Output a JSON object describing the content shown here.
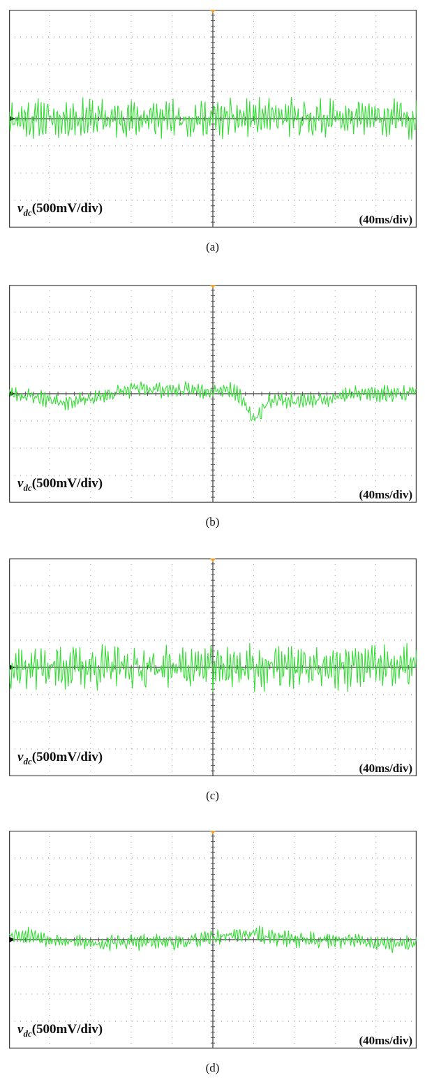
{
  "figure": {
    "panels": [
      {
        "caption": "(a)",
        "vlabel_sym": "v",
        "vlabel_sub": "dc",
        "vlabel_rest": "(500mV/div)",
        "tlabel": "(40ms/div)"
      },
      {
        "caption": "(b)",
        "vlabel_sym": "v",
        "vlabel_sub": "dc",
        "vlabel_rest": "(500mV/div)",
        "tlabel": "(40ms/div)"
      },
      {
        "caption": "(c)",
        "vlabel_sym": "v",
        "vlabel_sub": "dc",
        "vlabel_rest": "(500mV/div)",
        "tlabel": "(40ms/div)"
      },
      {
        "caption": "(d)",
        "vlabel_sym": "v",
        "vlabel_sub": "dc",
        "vlabel_rest": "(500mV/div)",
        "tlabel": "(40ms/div)"
      }
    ]
  },
  "chart_data": [
    {
      "type": "line",
      "series": [
        {
          "x_range": [
            -200,
            200
          ],
          "mean": 0,
          "amplitude_pp": 700,
          "low_freq_variation": 0,
          "seed": 11
        }
      ],
      "xlabel": "(40ms/div)",
      "ylabel": "vdc(500mV/div)",
      "xlim": [
        -200,
        200
      ],
      "ylim": [
        -2000,
        2000
      ],
      "xdivs": 10,
      "ydivs": 8,
      "grid": true,
      "color": "#33dd33"
    },
    {
      "type": "line",
      "series": [
        {
          "x_range": [
            -200,
            200
          ],
          "mean": 0,
          "amplitude_pp": 300,
          "low_freq_variation": 150,
          "dip": {
            "x": 40,
            "depth": 450
          },
          "seed": 23
        }
      ],
      "xlabel": "(40ms/div)",
      "ylabel": "vdc(500mV/div)",
      "xlim": [
        -200,
        200
      ],
      "ylim": [
        -2000,
        2000
      ],
      "xdivs": 10,
      "ydivs": 8,
      "grid": true,
      "color": "#33dd33"
    },
    {
      "type": "line",
      "series": [
        {
          "x_range": [
            -200,
            200
          ],
          "mean": 0,
          "amplitude_pp": 800,
          "low_freq_variation": 0,
          "seed": 37
        }
      ],
      "xlabel": "(40ms/div)",
      "ylabel": "vdc(500mV/div)",
      "xlim": [
        -200,
        200
      ],
      "ylim": [
        -2000,
        2000
      ],
      "xdivs": 10,
      "ydivs": 8,
      "grid": true,
      "color": "#33dd33"
    },
    {
      "type": "line",
      "series": [
        {
          "x_range": [
            -200,
            200
          ],
          "mean": 0,
          "amplitude_pp": 300,
          "low_freq_variation": 100,
          "seed": 53
        }
      ],
      "xlabel": "(40ms/div)",
      "ylabel": "vdc(500mV/div)",
      "xlim": [
        -200,
        200
      ],
      "ylim": [
        -2000,
        2000
      ],
      "xdivs": 10,
      "ydivs": 8,
      "grid": true,
      "color": "#33dd33"
    }
  ]
}
